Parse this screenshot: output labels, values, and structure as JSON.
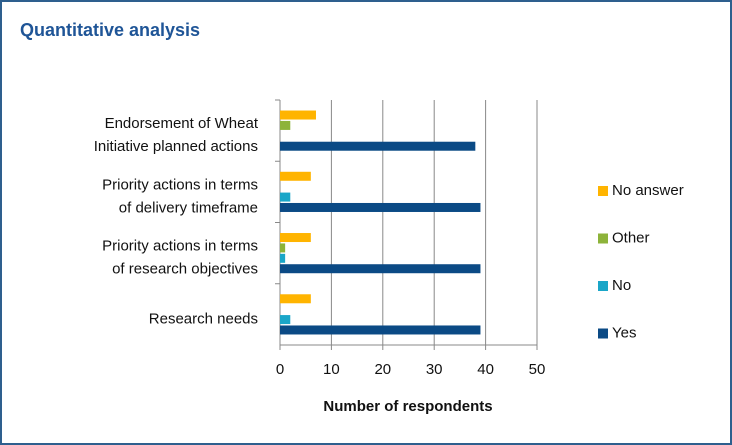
{
  "header": {
    "title": "Quantitative analysis"
  },
  "chart_data": {
    "type": "bar",
    "orientation": "horizontal",
    "categories": [
      "Endorsement of Wheat Initiative planned actions",
      "Priority actions in terms of delivery timeframe",
      "Priority actions in terms of research objectives",
      "Research needs"
    ],
    "series": [
      {
        "name": "No answer",
        "color": "#ffb400",
        "values": [
          7,
          6,
          6,
          6
        ]
      },
      {
        "name": "Other",
        "color": "#8db33a",
        "values": [
          2,
          0,
          1,
          0
        ]
      },
      {
        "name": "No",
        "color": "#1aa6c8",
        "values": [
          0,
          2,
          1,
          2
        ]
      },
      {
        "name": "Yes",
        "color": "#0b4a85",
        "values": [
          38,
          39,
          39,
          39
        ]
      }
    ],
    "xlim": [
      0,
      50
    ],
    "xticks": [
      0,
      10,
      20,
      30,
      40,
      50
    ],
    "xlabel": "Number of respondents",
    "grid": true,
    "legend": "right"
  }
}
